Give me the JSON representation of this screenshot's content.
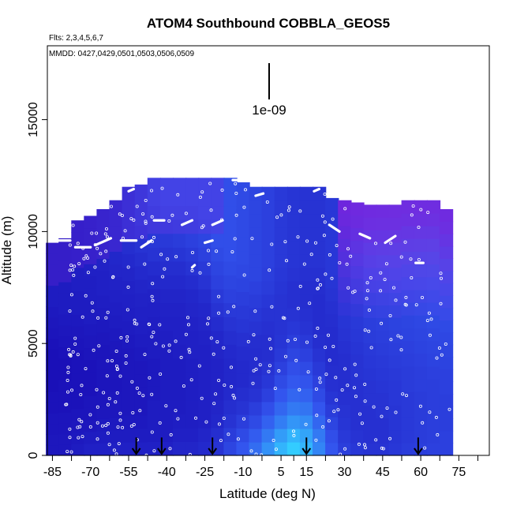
{
  "chart_data": {
    "type": "heatmap",
    "title": "ATOM4 Southbound COBBLA_GEOS5",
    "flights_label": "Flts: 2,3,4,5,6,7",
    "dates_label": "MMDD: 0427,0429,0501,0503,0506,0509",
    "xlabel": "Latitude (deg N)",
    "ylabel": "Altitude (m)",
    "xlim": [
      -87,
      87
    ],
    "ylim": [
      0,
      18300
    ],
    "x_ticks": [
      -85,
      -70,
      -55,
      -40,
      -25,
      -10,
      5,
      15,
      30,
      45,
      60,
      75
    ],
    "x_tick_labels": [
      "-85",
      "-70",
      "-55",
      "-40",
      "-25",
      "-10",
      "5",
      "15",
      "30",
      "45",
      "60",
      "75"
    ],
    "y_ticks": [
      0,
      5000,
      10000,
      15000
    ],
    "y_tick_labels": [
      "0",
      "5000",
      "10000",
      "15000"
    ],
    "scale_bar_label": "1e-09",
    "profile_arrows_lat": [
      -52,
      -42,
      -22,
      15,
      59
    ],
    "columns": [
      {
        "lat": -85,
        "top": 9500,
        "values": [
          0.18,
          0.18,
          0.17,
          0.17,
          0.16,
          0.16,
          0.15,
          0.15,
          0.15,
          0.15,
          0.16,
          0.17,
          0.18,
          0.19,
          0.2,
          0.2,
          0.2,
          0.2,
          0.2,
          0.2
        ]
      },
      {
        "lat": -80,
        "top": 9700,
        "values": [
          0.18,
          0.18,
          0.17,
          0.17,
          0.16,
          0.16,
          0.16,
          0.15,
          0.15,
          0.16,
          0.17,
          0.18,
          0.19,
          0.2,
          0.2,
          0.2,
          0.2,
          0.2,
          0.2,
          0.2
        ]
      },
      {
        "lat": -75,
        "top": 10500,
        "values": [
          0.2,
          0.19,
          0.18,
          0.17,
          0.16,
          0.16,
          0.16,
          0.16,
          0.16,
          0.17,
          0.18,
          0.19,
          0.2,
          0.2,
          0.21,
          0.21,
          0.21,
          0.21,
          0.21,
          0.21
        ]
      },
      {
        "lat": -70,
        "top": 10700,
        "values": [
          0.22,
          0.2,
          0.18,
          0.17,
          0.17,
          0.16,
          0.16,
          0.16,
          0.17,
          0.18,
          0.19,
          0.2,
          0.2,
          0.21,
          0.21,
          0.22,
          0.22,
          0.22,
          0.22,
          0.22
        ]
      },
      {
        "lat": -65,
        "top": 11000,
        "values": [
          0.22,
          0.2,
          0.19,
          0.18,
          0.17,
          0.17,
          0.17,
          0.17,
          0.17,
          0.18,
          0.19,
          0.2,
          0.21,
          0.22,
          0.22,
          0.23,
          0.24,
          0.24,
          0.24,
          0.24
        ]
      },
      {
        "lat": -60,
        "top": 11400,
        "values": [
          0.22,
          0.2,
          0.19,
          0.18,
          0.18,
          0.17,
          0.17,
          0.17,
          0.18,
          0.19,
          0.2,
          0.21,
          0.22,
          0.23,
          0.24,
          0.25,
          0.26,
          0.26,
          0.26,
          0.26
        ]
      },
      {
        "lat": -55,
        "top": 12000,
        "values": [
          0.22,
          0.2,
          0.19,
          0.18,
          0.18,
          0.18,
          0.18,
          0.18,
          0.19,
          0.2,
          0.21,
          0.22,
          0.23,
          0.24,
          0.26,
          0.28,
          0.3,
          0.3,
          0.3,
          0.3
        ]
      },
      {
        "lat": -50,
        "top": 12100,
        "values": [
          0.22,
          0.2,
          0.19,
          0.18,
          0.18,
          0.18,
          0.18,
          0.19,
          0.2,
          0.21,
          0.22,
          0.23,
          0.24,
          0.26,
          0.28,
          0.3,
          0.32,
          0.34,
          0.34,
          0.34
        ]
      },
      {
        "lat": -45,
        "top": 12400,
        "values": [
          0.22,
          0.2,
          0.2,
          0.2,
          0.19,
          0.19,
          0.19,
          0.2,
          0.2,
          0.21,
          0.22,
          0.23,
          0.25,
          0.27,
          0.3,
          0.32,
          0.35,
          0.38,
          0.4,
          0.4
        ]
      },
      {
        "lat": -40,
        "top": 12400,
        "values": [
          0.22,
          0.2,
          0.2,
          0.2,
          0.2,
          0.2,
          0.2,
          0.2,
          0.21,
          0.22,
          0.23,
          0.24,
          0.26,
          0.28,
          0.3,
          0.33,
          0.36,
          0.4,
          0.42,
          0.42
        ]
      },
      {
        "lat": -35,
        "top": 12400,
        "values": [
          0.24,
          0.22,
          0.21,
          0.2,
          0.2,
          0.2,
          0.2,
          0.21,
          0.22,
          0.22,
          0.23,
          0.24,
          0.26,
          0.28,
          0.31,
          0.34,
          0.37,
          0.4,
          0.42,
          0.42
        ]
      },
      {
        "lat": -30,
        "top": 12400,
        "values": [
          0.24,
          0.22,
          0.21,
          0.21,
          0.21,
          0.21,
          0.21,
          0.22,
          0.22,
          0.23,
          0.24,
          0.25,
          0.27,
          0.3,
          0.33,
          0.36,
          0.38,
          0.4,
          0.42,
          0.42
        ]
      },
      {
        "lat": -25,
        "top": 12400,
        "values": [
          0.26,
          0.24,
          0.22,
          0.22,
          0.22,
          0.22,
          0.22,
          0.22,
          0.23,
          0.24,
          0.25,
          0.27,
          0.3,
          0.33,
          0.36,
          0.38,
          0.4,
          0.42,
          0.42,
          0.42
        ]
      },
      {
        "lat": -20,
        "top": 12400,
        "values": [
          0.3,
          0.28,
          0.25,
          0.24,
          0.23,
          0.23,
          0.23,
          0.24,
          0.25,
          0.27,
          0.3,
          0.33,
          0.36,
          0.38,
          0.4,
          0.42,
          0.42,
          0.42,
          0.42,
          0.42
        ]
      },
      {
        "lat": -15,
        "top": 12400,
        "values": [
          0.38,
          0.34,
          0.3,
          0.28,
          0.26,
          0.25,
          0.25,
          0.26,
          0.28,
          0.3,
          0.33,
          0.36,
          0.38,
          0.4,
          0.42,
          0.42,
          0.42,
          0.42,
          0.42,
          0.42
        ]
      },
      {
        "lat": -10,
        "top": 12200,
        "values": [
          0.45,
          0.4,
          0.35,
          0.3,
          0.28,
          0.26,
          0.26,
          0.27,
          0.29,
          0.31,
          0.33,
          0.35,
          0.37,
          0.39,
          0.4,
          0.4,
          0.4,
          0.4,
          0.4,
          0.4
        ]
      },
      {
        "lat": -5,
        "top": 12000,
        "values": [
          0.55,
          0.48,
          0.4,
          0.35,
          0.3,
          0.28,
          0.27,
          0.27,
          0.28,
          0.3,
          0.32,
          0.34,
          0.36,
          0.38,
          0.38,
          0.38,
          0.38,
          0.38,
          0.38,
          0.38
        ]
      },
      {
        "lat": 0,
        "top": 12000,
        "values": [
          0.7,
          0.6,
          0.5,
          0.42,
          0.36,
          0.32,
          0.3,
          0.28,
          0.28,
          0.29,
          0.3,
          0.32,
          0.34,
          0.35,
          0.36,
          0.36,
          0.36,
          0.36,
          0.36,
          0.36
        ]
      },
      {
        "lat": 5,
        "top": 12000,
        "values": [
          0.85,
          0.75,
          0.62,
          0.52,
          0.45,
          0.4,
          0.36,
          0.33,
          0.31,
          0.3,
          0.3,
          0.3,
          0.31,
          0.32,
          0.33,
          0.33,
          0.33,
          0.33,
          0.33,
          0.33
        ]
      },
      {
        "lat": 10,
        "top": 12000,
        "values": [
          0.95,
          0.85,
          0.72,
          0.6,
          0.52,
          0.46,
          0.42,
          0.38,
          0.35,
          0.32,
          0.3,
          0.29,
          0.29,
          0.3,
          0.31,
          0.31,
          0.31,
          0.31,
          0.31,
          0.31
        ]
      },
      {
        "lat": 15,
        "top": 12000,
        "values": [
          0.85,
          0.78,
          0.68,
          0.58,
          0.5,
          0.44,
          0.4,
          0.36,
          0.33,
          0.3,
          0.29,
          0.28,
          0.28,
          0.29,
          0.3,
          0.3,
          0.3,
          0.3,
          0.3,
          0.3
        ]
      },
      {
        "lat": 20,
        "top": 12000,
        "values": [
          0.65,
          0.6,
          0.52,
          0.45,
          0.4,
          0.36,
          0.33,
          0.3,
          0.28,
          0.27,
          0.27,
          0.27,
          0.28,
          0.29,
          0.3,
          0.3,
          0.3,
          0.3,
          0.3,
          0.3
        ]
      },
      {
        "lat": 25,
        "top": 11500,
        "values": [
          0.45,
          0.42,
          0.38,
          0.34,
          0.31,
          0.29,
          0.28,
          0.27,
          0.27,
          0.27,
          0.28,
          0.29,
          0.3,
          0.31,
          0.32,
          0.32,
          0.32,
          0.32,
          0.32,
          0.32
        ]
      },
      {
        "lat": 30,
        "top": 11400,
        "values": [
          0.35,
          0.33,
          0.31,
          0.3,
          0.29,
          0.28,
          0.28,
          0.28,
          0.29,
          0.3,
          0.31,
          0.32,
          0.33,
          0.34,
          0.35,
          0.35,
          0.35,
          0.35,
          0.35,
          0.35
        ]
      },
      {
        "lat": 35,
        "top": 11300,
        "values": [
          0.32,
          0.3,
          0.29,
          0.29,
          0.29,
          0.29,
          0.3,
          0.3,
          0.31,
          0.32,
          0.33,
          0.34,
          0.36,
          0.38,
          0.4,
          0.42,
          0.42,
          0.42,
          0.42,
          0.42
        ]
      },
      {
        "lat": 40,
        "top": 11200,
        "values": [
          0.3,
          0.29,
          0.29,
          0.29,
          0.3,
          0.3,
          0.31,
          0.32,
          0.33,
          0.34,
          0.35,
          0.37,
          0.39,
          0.42,
          0.45,
          0.48,
          0.5,
          0.5,
          0.5,
          0.5
        ]
      },
      {
        "lat": 45,
        "top": 11200,
        "values": [
          0.3,
          0.29,
          0.29,
          0.3,
          0.3,
          0.31,
          0.32,
          0.33,
          0.34,
          0.35,
          0.36,
          0.38,
          0.4,
          0.43,
          0.46,
          0.5,
          0.52,
          0.52,
          0.52,
          0.52
        ]
      },
      {
        "lat": 50,
        "top": 11200,
        "values": [
          0.32,
          0.31,
          0.31,
          0.31,
          0.32,
          0.32,
          0.33,
          0.34,
          0.35,
          0.36,
          0.37,
          0.39,
          0.41,
          0.44,
          0.47,
          0.5,
          0.53,
          0.53,
          0.53,
          0.53
        ]
      },
      {
        "lat": 55,
        "top": 11400,
        "values": [
          0.34,
          0.33,
          0.33,
          0.33,
          0.33,
          0.34,
          0.34,
          0.35,
          0.36,
          0.37,
          0.38,
          0.4,
          0.42,
          0.45,
          0.48,
          0.51,
          0.53,
          0.53,
          0.53,
          0.53
        ]
      },
      {
        "lat": 60,
        "top": 11400,
        "values": [
          0.35,
          0.34,
          0.34,
          0.34,
          0.34,
          0.35,
          0.35,
          0.36,
          0.37,
          0.38,
          0.39,
          0.41,
          0.43,
          0.46,
          0.49,
          0.52,
          0.54,
          0.54,
          0.54,
          0.54
        ]
      },
      {
        "lat": 65,
        "top": 11400,
        "values": [
          0.36,
          0.35,
          0.35,
          0.35,
          0.35,
          0.35,
          0.36,
          0.37,
          0.38,
          0.39,
          0.4,
          0.42,
          0.44,
          0.47,
          0.5,
          0.53,
          0.55,
          0.55,
          0.55,
          0.55
        ]
      },
      {
        "lat": 70,
        "top": 11000,
        "values": [
          0.36,
          0.36,
          0.35,
          0.35,
          0.35,
          0.36,
          0.36,
          0.37,
          0.38,
          0.39,
          0.4,
          0.42,
          0.44,
          0.46,
          0.48,
          0.5,
          0.5,
          0.5,
          0.5,
          0.5
        ]
      }
    ],
    "colors": {
      "low": "#1a10b8",
      "mid": "#3355ee",
      "high": "#33ccff",
      "purple": "#7a22dd"
    }
  }
}
